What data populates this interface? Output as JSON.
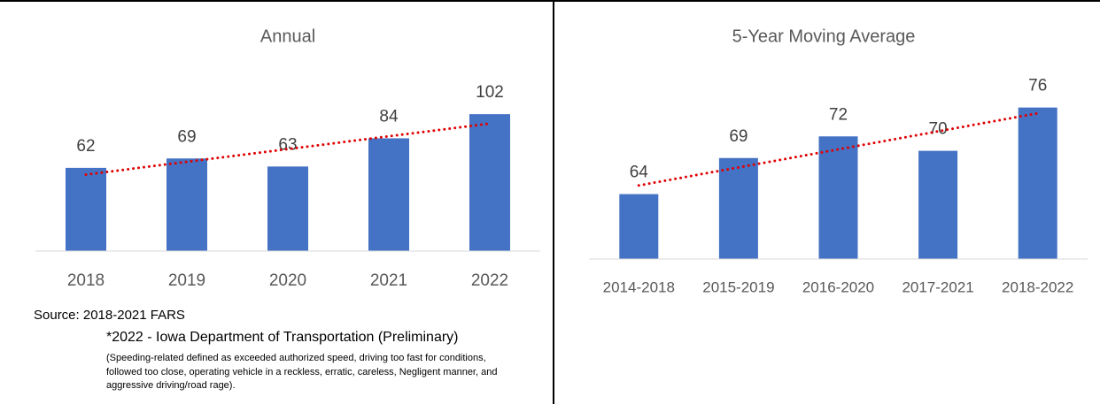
{
  "chart_data": [
    {
      "type": "bar",
      "title": "Annual",
      "categories": [
        "2018",
        "2019",
        "2020",
        "2021",
        "2022"
      ],
      "values": [
        62,
        69,
        63,
        84,
        102
      ],
      "color": "#4472c4",
      "trendline": true,
      "trendline_color": "#e00000",
      "ylim": [
        0,
        110
      ]
    },
    {
      "type": "bar",
      "title": "5-Year Moving Average",
      "categories": [
        "2014-2018",
        "2015-2019",
        "2016-2020",
        "2017-2021",
        "2018-2022"
      ],
      "values": [
        64,
        69,
        72,
        70,
        76
      ],
      "color": "#4472c4",
      "trendline": true,
      "trendline_color": "#e00000",
      "ylim": [
        55,
        80
      ]
    }
  ],
  "source": {
    "label": "Source:  2018-2021 FARS",
    "line2": "*2022 - Iowa Department of Transportation (Preliminary)",
    "definition": "(Speeding-related defined as exceeded authorized speed, driving too fast for conditions, followed too close, operating vehicle in a reckless, erratic, careless, Negligent manner, and aggressive driving/road rage)."
  }
}
